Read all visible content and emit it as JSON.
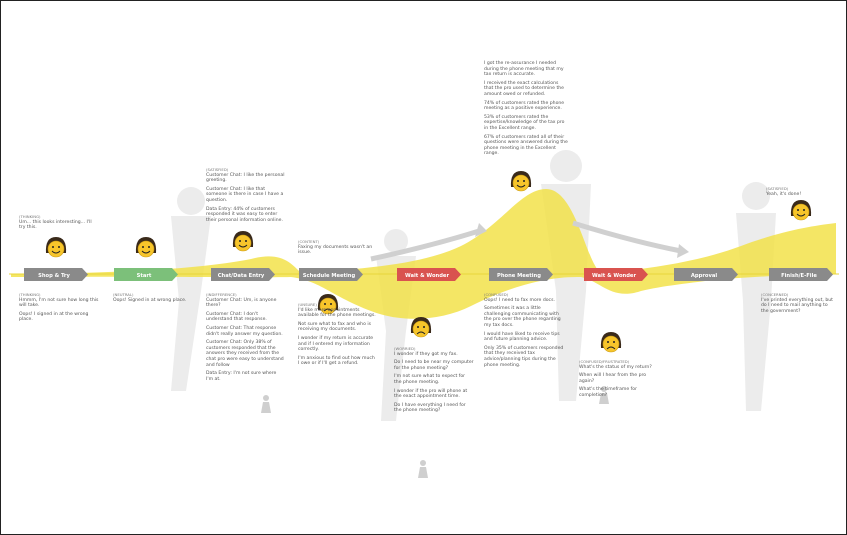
{
  "stages": [
    {
      "label": "Shop & Try",
      "color": "#8a8a8a"
    },
    {
      "label": "Start",
      "color": "#7cc07a"
    },
    {
      "label": "Chat/Data Entry",
      "color": "#8a8a8a"
    },
    {
      "label": "Schedule Meeting",
      "color": "#8a8a8a"
    },
    {
      "label": "Wait & Wonder",
      "color": "#d9534f"
    },
    {
      "label": "Phone Meeting",
      "color": "#8a8a8a"
    },
    {
      "label": "Wait & Wonder",
      "color": "#d9534f"
    },
    {
      "label": "Approval",
      "color": "#8a8a8a"
    },
    {
      "label": "Finish/E-File",
      "color": "#8a8a8a"
    }
  ],
  "notes_above": [
    {
      "mood": "(THINKING)",
      "lines": [
        "Um... this looks interesting... I'll try this."
      ]
    },
    {
      "mood": "(SATISFIED)",
      "lines": [
        "Customer Chat: I like the personal greeting.",
        "Customer Chat: I like that someone is there in case I have a question.",
        "Data Entry: 44% of customers responded it was easy to enter their personal information online."
      ]
    },
    {
      "mood": "(CONTENT)",
      "lines": [
        "Faxing my documents wasn't an issue."
      ]
    },
    {
      "mood": null,
      "lines": [
        "I got the re-assurance I needed during the phone meeting that my tax return is accurate.",
        "I received the exact calculations that the pro used to determine the amount owed or refunded.",
        "74% of customers rated the phone meeting as a positive experience.",
        "53% of customers rated the expertise/knowledge of the tax pro in the Excellent range.",
        "67% of customers rated all of their questions were answered during the phone meeting in the Excellent range."
      ]
    },
    {
      "mood": "(SATISFIED)",
      "lines": [
        "Yeah, it's done!"
      ]
    }
  ],
  "notes_below": [
    {
      "mood": "(THINKING)",
      "lines": [
        "Hmmm, I'm not sure how long this will take.",
        "Oops! I signed in at the wrong place."
      ]
    },
    {
      "mood": "(NEUTRAL)",
      "lines": [
        "Oops! Signed in at wrong place."
      ]
    },
    {
      "mood": "(INDIFFERENCE)",
      "lines": [
        "Customer Chat: Um, is anyone there?",
        "Customer Chat: I don't understand that response.",
        "Customer Chat: That response didn't really answer my question.",
        "Customer Chat: Only 38% of customers responded that the answers they received from the chat pro were easy to understand and follow",
        "Data Entry: I'm not sure where I'm at."
      ]
    },
    {
      "mood": "(UNSURE)",
      "lines": [
        "I'd like more appointments available for the phone meetings.",
        "Not sure what to fax and who is receiving my documents.",
        "I wonder if my return is accurate and if I entered my information correctly.",
        "I'm anxious to find out how much I owe or if I'll get a refund."
      ]
    },
    {
      "mood": "(WORRIED)",
      "lines": [
        "I wonder if they got my fax.",
        "Do I need to be near my computer for the phone meeting?",
        "I'm not sure what to expect for the phone meeting.",
        "I wonder if the pro will phone at the exact appointment time.",
        "Do I have everything I need for the phone meeting?"
      ]
    },
    {
      "mood": "(CONFUSED)",
      "lines": [
        "Oops! I need to fax more docs.",
        "Sometimes it was a little challenging communicating with the pro over the phone regarding my tax docs.",
        "I would have liked to receive tips and future planning advice.",
        "Only 35% of customers responded that they received tax advice/planning tips during the phone meeting."
      ]
    },
    {
      "mood": "(CONFUSED/FRUSTRATED)",
      "lines": [
        "What's the status of my return?",
        "When will I hear from the pro again?",
        "What's the timeframe for completion?"
      ]
    },
    {
      "mood": "(CONCERNED)",
      "lines": [
        "I've printed everything out, but do I need to mail anything to the government?"
      ]
    }
  ]
}
